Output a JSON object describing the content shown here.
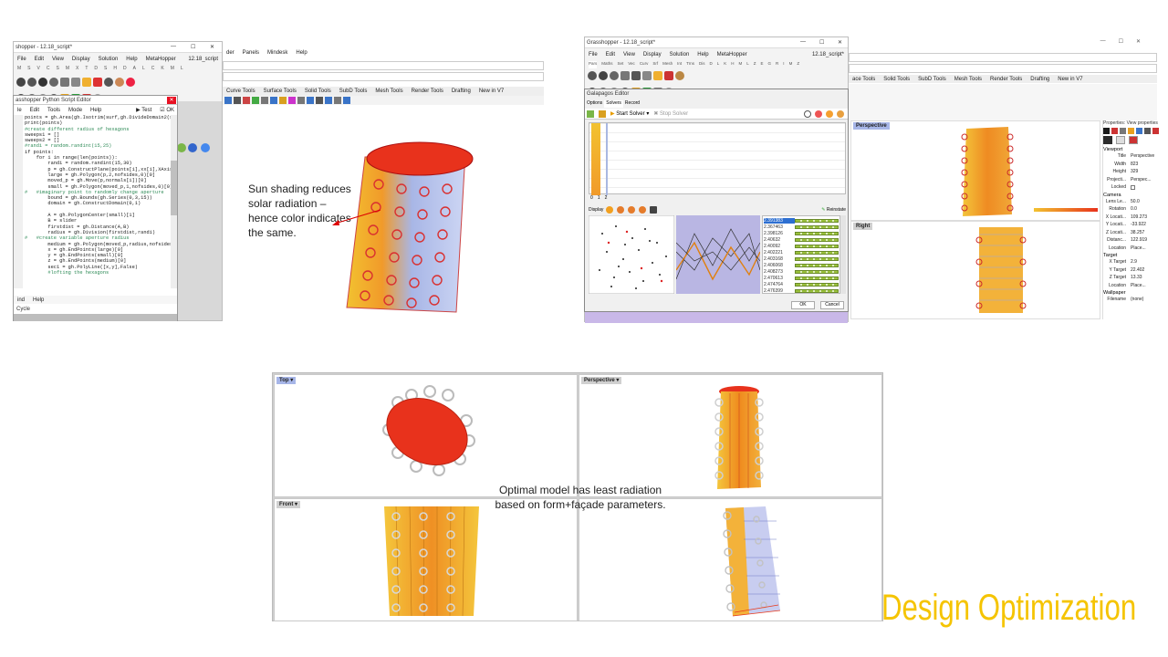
{
  "slide_title": {
    "word1": "Design",
    "word2": "Optimization",
    "color": "#f5c400"
  },
  "callouts": {
    "sun_shading": "Sun shading reduces solar radiation – hence color indicates the same.",
    "optimal": "Optimal model has least radiation based on form+façade parameters."
  },
  "gh_window_1": {
    "title": "shopper - 12.18_script*",
    "file_label": "12.18_script",
    "menu": [
      "File",
      "Edit",
      "View",
      "Display",
      "Solution",
      "Help",
      "MetaHopper"
    ],
    "tabs": [
      "M",
      "S",
      "V",
      "C",
      "S",
      "M",
      "X",
      "T",
      "D",
      "S",
      "H",
      "D",
      "A",
      "L",
      "C",
      "K",
      "M",
      "L"
    ],
    "extra_menu": [
      "der",
      "Panels",
      "Mindesk",
      "Help"
    ],
    "rhino_tabs": [
      "Curve Tools",
      "Surface Tools",
      "Solid Tools",
      "SubD Tools",
      "Mesh Tools",
      "Render Tools",
      "Drafting",
      "New in V7"
    ]
  },
  "script_editor": {
    "title": "asshopper Python Script Editor",
    "menu": [
      "le",
      "Edit",
      "Tools",
      "Mode",
      "Help"
    ],
    "test_label": "Test",
    "ok_label": "OK",
    "code_lines": [
      "points = gh.Area(gh.Isotrim(surf,gh.DivideDomain2(surf,U",
      "print(points)",
      "#create different radius of hexagons",
      "sweeps1 = []",
      "sweeps2 = []",
      "#randi = random.randint(15,25)",
      "if points:",
      "    for i in range(len(points)):",
      "        randi = random.randint(15,30)",
      "        p = gh.ConstructPlane(points[i],xx[i],XAxis,xx[i]",
      "        large = gh.Polygon(p,2,nofsides,0)[0]",
      "        moved_p = gh.Move(p,normals[i])[0]",
      "        small = gh.Polygon(moved_p,1,nofsides,0)[0]",
      "#   #imaginary point to randomly change aperture",
      "        bound = gh.Bounds(gh.Series(0,3,15))",
      "        domain = gh.ConstructDomain(0,1)",
      "        ",
      "        A = gh.PolygonCenter(small)[1]",
      "        B = slider",
      "        firstdist = gh.Distance(A,B)",
      "        radius = gh.Division(firstdist,randi)",
      "#   #create variable aperture radius",
      "        medium = gh.Polygon(moved_p,radius,nofsides,0)[0]",
      "        x = gh.EndPoints(large)[0]",
      "        y = gh.EndPoints(small)[0]",
      "        z = gh.EndPoints(medium)[0]",
      "        sec1 = gh.PolyLine([x,y],False)",
      "        #lofting the hexagons"
    ],
    "bottom_menu": [
      "ind",
      "Help"
    ],
    "cycle_label": "Cycle"
  },
  "gh_window_2": {
    "title": "Grasshopper - 12.18_script*",
    "file_label": "12.18_script*",
    "menu": [
      "File",
      "Edit",
      "View",
      "Display",
      "Solution",
      "Help",
      "MetaHopper"
    ],
    "tabs": [
      "Pars",
      "Maths",
      "Set",
      "Vec",
      "Curv",
      "Srf",
      "Mesh",
      "Int",
      "Trns",
      "Dis",
      "D",
      "L",
      "K",
      "H",
      "M",
      "L",
      "Z",
      "E",
      "G",
      "R",
      "I",
      "M",
      "Z"
    ]
  },
  "galapagos": {
    "title": "Galapagos Editor",
    "tabs": [
      "Options",
      "Solvers",
      "Record"
    ],
    "start_solver": "Start Solver",
    "stop_solver": "Stop Solver",
    "display_label": "Display",
    "reinstate": "Reinstate",
    "axis_ticks": [
      "0",
      "1",
      "2"
    ],
    "fitness_values": [
      "2.391383",
      "2.367463",
      "2.398126",
      "2.40632",
      "2.40092",
      "2.402221",
      "2.403168",
      "2.406068",
      "2.408273",
      "2.470613",
      "2.474764",
      "2.476399"
    ],
    "ok": "OK",
    "cancel": "Cancel"
  },
  "rhino_right": {
    "tabs": [
      "ace Tools",
      "Solid Tools",
      "SubD Tools",
      "Mesh Tools",
      "Render Tools",
      "Drafting",
      "New in V7"
    ],
    "perspective_label": "Perspective",
    "right_label": "Right",
    "properties_header": "Properties: View properties",
    "viewport_section": "Viewport",
    "viewport_props": [
      {
        "k": "Title",
        "v": "Perspective"
      },
      {
        "k": "Width",
        "v": "823"
      },
      {
        "k": "Height",
        "v": "329"
      },
      {
        "k": "Projecti...",
        "v": "Perspec..."
      },
      {
        "k": "Locked",
        "v": ""
      }
    ],
    "camera_section": "Camera",
    "camera_props": [
      {
        "k": "Lens Le...",
        "v": "50.0"
      },
      {
        "k": "Rotation",
        "v": "0.0"
      },
      {
        "k": "X Locati...",
        "v": "109.273"
      },
      {
        "k": "Y Locati...",
        "v": "-33.922"
      },
      {
        "k": "Z Locati...",
        "v": "38.257"
      },
      {
        "k": "Distanc...",
        "v": "122.919"
      },
      {
        "k": "Location",
        "v": "Place..."
      }
    ],
    "target_section": "Target",
    "target_props": [
      {
        "k": "X Target",
        "v": "2.9"
      },
      {
        "k": "Y Target",
        "v": "22.402"
      },
      {
        "k": "Z Target",
        "v": "13.33"
      },
      {
        "k": "Location",
        "v": "Place..."
      }
    ],
    "wallpaper_section": "Wallpaper",
    "filename_label": "Filename",
    "filename_value": "(none)"
  },
  "quad": {
    "top": "Top",
    "perspective": "Perspective",
    "front": "Front"
  }
}
